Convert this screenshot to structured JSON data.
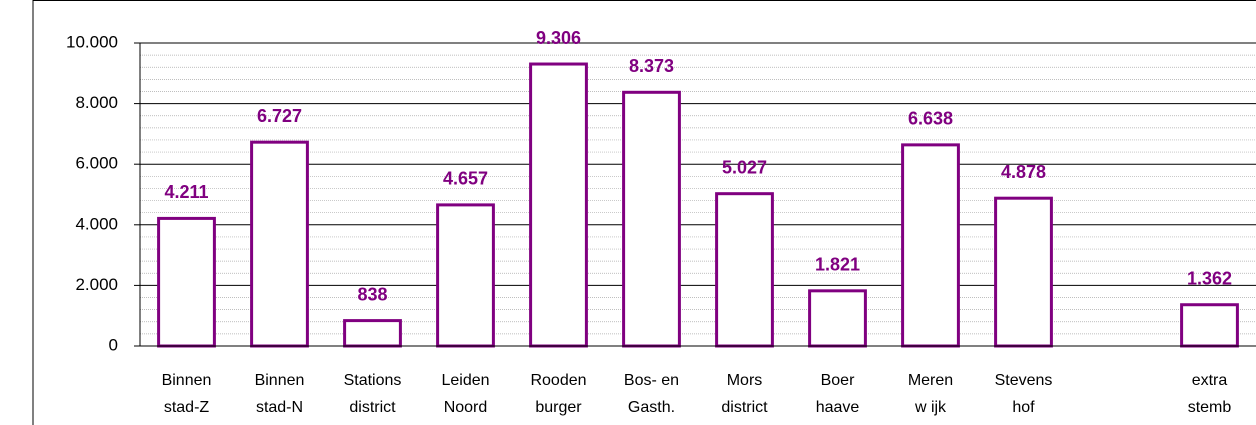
{
  "chart_data": {
    "type": "bar",
    "categories": [
      [
        "Binnen",
        "stad-Z"
      ],
      [
        "Binnen",
        "stad-N"
      ],
      [
        "Stations",
        "district"
      ],
      [
        "Leiden",
        "Noord"
      ],
      [
        "Rooden",
        "burger"
      ],
      [
        "Bos- en",
        "Gasth."
      ],
      [
        "Mors",
        "district"
      ],
      [
        "Boer",
        "haave"
      ],
      [
        "Meren",
        "w ijk"
      ],
      [
        "Stevens",
        "hof"
      ],
      null,
      [
        "extra",
        "stemb"
      ]
    ],
    "values": [
      4211,
      6727,
      838,
      4657,
      9306,
      8373,
      5027,
      1821,
      6638,
      4878,
      null,
      1362
    ],
    "value_labels": [
      "4.211",
      "6.727",
      "838",
      "4.657",
      "9.306",
      "8.373",
      "5.027",
      "1.821",
      "6.638",
      "4.878",
      null,
      "1.362"
    ],
    "color": "#800080",
    "ylim": [
      0,
      10000
    ],
    "yticks": [
      0,
      {
        "value": 2000,
        "label": "2.000"
      },
      {
        "value": 4000,
        "label": "4.000"
      },
      {
        "value": 6000,
        "label": "6.000"
      },
      {
        "value": 8000,
        "label": "8.000"
      },
      {
        "value": 10000,
        "label": "10.000"
      }
    ],
    "minor_yticks": [
      400,
      800,
      1200,
      1600,
      2400,
      2800,
      3200,
      3600,
      4400,
      4800,
      5200,
      5600,
      6400,
      6800,
      7200,
      7600,
      8400,
      8800,
      9200,
      9600
    ],
    "grid": true
  }
}
